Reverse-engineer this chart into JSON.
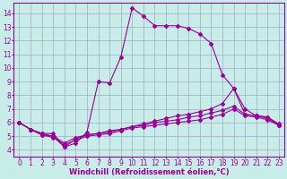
{
  "xlabel": "Windchill (Refroidissement éolien,°C)",
  "ylabel": "",
  "xlim": [
    -0.5,
    23.5
  ],
  "ylim": [
    3.5,
    14.8
  ],
  "background_color": "#c8ece8",
  "line_color": "#990099",
  "grid_color": "#a0a8c8",
  "lines": [
    {
      "x": [
        0,
        1,
        2,
        3,
        4,
        5,
        6,
        7,
        8,
        9,
        10,
        11,
        12,
        13,
        14,
        15,
        16,
        17,
        18,
        19,
        20,
        21,
        22,
        23
      ],
      "y": [
        6.0,
        5.5,
        5.2,
        5.2,
        4.2,
        4.5,
        5.3,
        9.0,
        8.9,
        10.8,
        14.4,
        13.8,
        13.1,
        13.1,
        13.1,
        12.9,
        12.5,
        11.8,
        9.5,
        8.5,
        7.0,
        6.5,
        6.4,
        5.8
      ]
    },
    {
      "x": [
        0,
        1,
        2,
        3,
        4,
        5,
        6,
        7,
        8,
        9,
        10,
        11,
        12,
        13,
        14,
        15,
        16,
        17,
        18,
        19,
        20,
        21,
        22,
        23
      ],
      "y": [
        6.0,
        5.5,
        5.2,
        5.0,
        4.2,
        4.8,
        5.1,
        5.2,
        5.4,
        5.5,
        5.7,
        5.9,
        6.1,
        6.3,
        6.5,
        6.6,
        6.8,
        7.0,
        7.4,
        8.5,
        6.6,
        6.5,
        6.4,
        5.9
      ]
    },
    {
      "x": [
        0,
        1,
        2,
        3,
        4,
        5,
        6,
        7,
        8,
        9,
        10,
        11,
        12,
        13,
        14,
        15,
        16,
        17,
        18,
        19,
        20,
        21,
        22,
        23
      ],
      "y": [
        6.0,
        5.5,
        5.1,
        5.0,
        4.5,
        4.9,
        5.1,
        5.2,
        5.3,
        5.5,
        5.7,
        5.8,
        6.0,
        6.1,
        6.2,
        6.4,
        6.5,
        6.7,
        6.9,
        7.2,
        6.6,
        6.5,
        6.3,
        5.8
      ]
    },
    {
      "x": [
        0,
        1,
        2,
        3,
        4,
        5,
        6,
        7,
        8,
        9,
        10,
        11,
        12,
        13,
        14,
        15,
        16,
        17,
        18,
        19,
        20,
        21,
        22,
        23
      ],
      "y": [
        6.0,
        5.5,
        5.1,
        4.9,
        4.4,
        4.7,
        5.0,
        5.1,
        5.2,
        5.4,
        5.6,
        5.7,
        5.8,
        5.9,
        6.0,
        6.1,
        6.2,
        6.4,
        6.6,
        7.0,
        6.5,
        6.4,
        6.2,
        5.8
      ]
    }
  ],
  "xticks": [
    0,
    1,
    2,
    3,
    4,
    5,
    6,
    7,
    8,
    9,
    10,
    11,
    12,
    13,
    14,
    15,
    16,
    17,
    18,
    19,
    20,
    21,
    22,
    23
  ],
  "yticks": [
    4,
    5,
    6,
    7,
    8,
    9,
    10,
    11,
    12,
    13,
    14
  ],
  "tick_fontsize": 5.5,
  "xlabel_fontsize": 6,
  "marker": "D",
  "markersize": 2,
  "linewidth": 0.8
}
